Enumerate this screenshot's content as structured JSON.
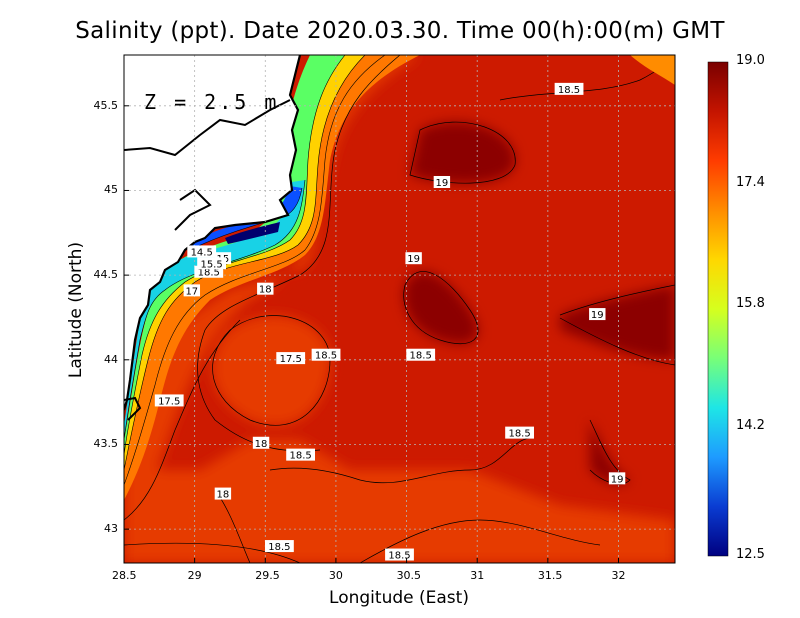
{
  "title": "Salinity (ppt). Date 2020.03.30. Time 00(h):00(m) GMT",
  "depth_label": "Z = 2.5 m",
  "xlabel": "Longitude (East)",
  "ylabel": "Latitude (North)",
  "x_ticks": [
    "28.5",
    "29",
    "29.5",
    "30",
    "30.5",
    "31",
    "31.5",
    "32"
  ],
  "y_ticks": [
    "43",
    "43.5",
    "44",
    "44.5",
    "45",
    "45.5"
  ],
  "colorbar": {
    "ticks": [
      "19.0",
      "17.4",
      "15.8",
      "14.2",
      "12.5"
    ],
    "range": [
      12.5,
      19.0
    ],
    "colors": [
      "#7a0000",
      "#c41400",
      "#ff3c00",
      "#ff8c00",
      "#ffd700",
      "#d6ff1e",
      "#78ff78",
      "#1ee6e6",
      "#1e9bff",
      "#0a3cd2",
      "#000080"
    ]
  },
  "map": {
    "lon_range": [
      28.5,
      32.4
    ],
    "lat_range": [
      42.8,
      45.8
    ],
    "colors": {
      "land": "#ffffff",
      "coastline": "#000000",
      "deep": "#8c0000",
      "main": "#cd1a00",
      "mid": "#e63a00",
      "coast_orange": "#ff7800",
      "coast_yellow": "#ffd200",
      "coast_green": "#5aff64",
      "coast_cyan": "#18d2e6",
      "coast_blue": "#0a50ff",
      "coast_navy": "#00006e"
    }
  },
  "contour_labels": [
    {
      "text": "18.5",
      "lon": 31.65,
      "lat": 45.6
    },
    {
      "text": "19",
      "lon": 30.75,
      "lat": 45.05
    },
    {
      "text": "19",
      "lon": 30.55,
      "lat": 44.6
    },
    {
      "text": "19",
      "lon": 31.85,
      "lat": 44.27
    },
    {
      "text": "18",
      "lon": 29.5,
      "lat": 44.42
    },
    {
      "text": "18.5",
      "lon": 29.93,
      "lat": 44.03
    },
    {
      "text": "18.5",
      "lon": 30.6,
      "lat": 44.03
    },
    {
      "text": "17.5",
      "lon": 29.68,
      "lat": 44.01
    },
    {
      "text": "17.5",
      "lon": 28.82,
      "lat": 43.76
    },
    {
      "text": "17",
      "lon": 28.98,
      "lat": 44.41
    },
    {
      "text": "18.5",
      "lon": 29.1,
      "lat": 44.52
    },
    {
      "text": "14.5",
      "lon": 29.05,
      "lat": 44.64
    },
    {
      "text": "15",
      "lon": 29.2,
      "lat": 44.6
    },
    {
      "text": "15.5",
      "lon": 29.12,
      "lat": 44.57
    },
    {
      "text": "18",
      "lon": 29.47,
      "lat": 43.51
    },
    {
      "text": "18.5",
      "lon": 29.75,
      "lat": 43.44
    },
    {
      "text": "18.5",
      "lon": 31.3,
      "lat": 43.57
    },
    {
      "text": "19",
      "lon": 31.99,
      "lat": 43.3
    },
    {
      "text": "18",
      "lon": 29.2,
      "lat": 43.21
    },
    {
      "text": "18.5",
      "lon": 29.6,
      "lat": 42.9
    },
    {
      "text": "18.5",
      "lon": 30.45,
      "lat": 42.85
    }
  ]
}
